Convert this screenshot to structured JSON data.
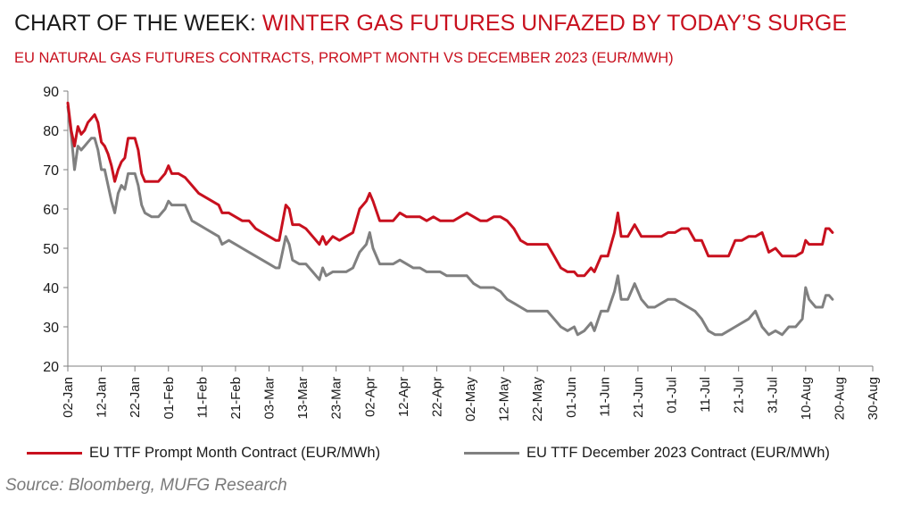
{
  "title": {
    "prefix": "CHART OF THE WEEK:",
    "highlight": "WINTER GAS FUTURES UNFAZED BY TODAY’S SURGE"
  },
  "subtitle": "EU NATURAL GAS FUTURES CONTRACTS, PROMPT MONTH VS DECEMBER 2023 (EUR/MWH)",
  "source": "Source: Bloomberg, MUFG Research",
  "colors": {
    "prompt": "#c8101e",
    "dec23": "#808080",
    "axis": "#7f7f7f",
    "title_red": "#c8101e"
  },
  "legend": [
    {
      "label": "EU TTF Prompt Month Contract (EUR/MWh)",
      "color": "#c8101e"
    },
    {
      "label": "EU TTF December 2023 Contract (EUR/MWh)",
      "color": "#808080"
    }
  ],
  "chart_data": {
    "type": "line",
    "ylim": [
      20,
      90
    ],
    "yticks": [
      20,
      30,
      40,
      50,
      60,
      70,
      80,
      90
    ],
    "xaxis_start": "02-Jan",
    "xaxis_end": "30-Aug",
    "xticks": [
      "02-Jan",
      "12-Jan",
      "22-Jan",
      "01-Feb",
      "11-Feb",
      "21-Feb",
      "03-Mar",
      "13-Mar",
      "23-Mar",
      "02-Apr",
      "12-Apr",
      "22-Apr",
      "02-May",
      "12-May",
      "22-May",
      "01-Jun",
      "11-Jun",
      "21-Jun",
      "01-Jul",
      "11-Jul",
      "21-Jul",
      "31-Jul",
      "10-Aug",
      "20-Aug",
      "30-Aug"
    ],
    "grid": false,
    "legend_position": "bottom",
    "series": [
      {
        "name": "EU TTF Prompt Month Contract (EUR/MWh)",
        "points": [
          [
            "02-Jan",
            87
          ],
          [
            "03-Jan",
            80
          ],
          [
            "04-Jan",
            76
          ],
          [
            "05-Jan",
            81
          ],
          [
            "06-Jan",
            79
          ],
          [
            "07-Jan",
            80
          ],
          [
            "08-Jan",
            82
          ],
          [
            "09-Jan",
            83
          ],
          [
            "10-Jan",
            84
          ],
          [
            "11-Jan",
            82
          ],
          [
            "12-Jan",
            77
          ],
          [
            "13-Jan",
            76
          ],
          [
            "14-Jan",
            74
          ],
          [
            "15-Jan",
            71
          ],
          [
            "16-Jan",
            67
          ],
          [
            "17-Jan",
            70
          ],
          [
            "18-Jan",
            72
          ],
          [
            "19-Jan",
            73
          ],
          [
            "20-Jan",
            78
          ],
          [
            "21-Jan",
            78
          ],
          [
            "22-Jan",
            78
          ],
          [
            "23-Jan",
            75
          ],
          [
            "24-Jan",
            69
          ],
          [
            "25-Jan",
            67
          ],
          [
            "27-Jan",
            67
          ],
          [
            "29-Jan",
            67
          ],
          [
            "30-Jan",
            68
          ],
          [
            "31-Jan",
            69
          ],
          [
            "01-Feb",
            71
          ],
          [
            "02-Feb",
            69
          ],
          [
            "04-Feb",
            69
          ],
          [
            "06-Feb",
            68
          ],
          [
            "08-Feb",
            66
          ],
          [
            "10-Feb",
            64
          ],
          [
            "12-Feb",
            63
          ],
          [
            "14-Feb",
            62
          ],
          [
            "16-Feb",
            61
          ],
          [
            "17-Feb",
            59
          ],
          [
            "19-Feb",
            59
          ],
          [
            "21-Feb",
            58
          ],
          [
            "23-Feb",
            57
          ],
          [
            "25-Feb",
            57
          ],
          [
            "27-Feb",
            55
          ],
          [
            "01-Mar",
            54
          ],
          [
            "03-Mar",
            53
          ],
          [
            "05-Mar",
            52
          ],
          [
            "06-Mar",
            52
          ],
          [
            "08-Mar",
            61
          ],
          [
            "09-Mar",
            60
          ],
          [
            "10-Mar",
            56
          ],
          [
            "12-Mar",
            56
          ],
          [
            "14-Mar",
            55
          ],
          [
            "16-Mar",
            53
          ],
          [
            "18-Mar",
            51
          ],
          [
            "19-Mar",
            53
          ],
          [
            "20-Mar",
            51
          ],
          [
            "22-Mar",
            53
          ],
          [
            "24-Mar",
            52
          ],
          [
            "26-Mar",
            53
          ],
          [
            "28-Mar",
            54
          ],
          [
            "30-Mar",
            60
          ],
          [
            "01-Apr",
            62
          ],
          [
            "02-Apr",
            64
          ],
          [
            "03-Apr",
            62
          ],
          [
            "05-Apr",
            57
          ],
          [
            "07-Apr",
            57
          ],
          [
            "09-Apr",
            57
          ],
          [
            "11-Apr",
            59
          ],
          [
            "13-Apr",
            58
          ],
          [
            "15-Apr",
            58
          ],
          [
            "17-Apr",
            58
          ],
          [
            "19-Apr",
            57
          ],
          [
            "21-Apr",
            58
          ],
          [
            "23-Apr",
            57
          ],
          [
            "25-Apr",
            57
          ],
          [
            "27-Apr",
            57
          ],
          [
            "29-Apr",
            58
          ],
          [
            "01-May",
            59
          ],
          [
            "03-May",
            58
          ],
          [
            "05-May",
            57
          ],
          [
            "07-May",
            57
          ],
          [
            "09-May",
            58
          ],
          [
            "11-May",
            58
          ],
          [
            "13-May",
            57
          ],
          [
            "15-May",
            55
          ],
          [
            "17-May",
            52
          ],
          [
            "19-May",
            51
          ],
          [
            "21-May",
            51
          ],
          [
            "23-May",
            51
          ],
          [
            "25-May",
            51
          ],
          [
            "27-May",
            48
          ],
          [
            "29-May",
            45
          ],
          [
            "31-May",
            44
          ],
          [
            "02-Jun",
            44
          ],
          [
            "03-Jun",
            43
          ],
          [
            "05-Jun",
            43
          ],
          [
            "07-Jun",
            45
          ],
          [
            "08-Jun",
            44
          ],
          [
            "10-Jun",
            48
          ],
          [
            "12-Jun",
            48
          ],
          [
            "14-Jun",
            54
          ],
          [
            "15-Jun",
            59
          ],
          [
            "16-Jun",
            53
          ],
          [
            "18-Jun",
            53
          ],
          [
            "20-Jun",
            56
          ],
          [
            "22-Jun",
            53
          ],
          [
            "24-Jun",
            53
          ],
          [
            "26-Jun",
            53
          ],
          [
            "28-Jun",
            53
          ],
          [
            "30-Jun",
            54
          ],
          [
            "02-Jul",
            54
          ],
          [
            "04-Jul",
            55
          ],
          [
            "06-Jul",
            55
          ],
          [
            "08-Jul",
            52
          ],
          [
            "10-Jul",
            52
          ],
          [
            "12-Jul",
            48
          ],
          [
            "14-Jul",
            48
          ],
          [
            "16-Jul",
            48
          ],
          [
            "18-Jul",
            48
          ],
          [
            "20-Jul",
            52
          ],
          [
            "22-Jul",
            52
          ],
          [
            "24-Jul",
            53
          ],
          [
            "26-Jul",
            53
          ],
          [
            "28-Jul",
            54
          ],
          [
            "30-Jul",
            49
          ],
          [
            "01-Aug",
            50
          ],
          [
            "03-Aug",
            48
          ],
          [
            "05-Aug",
            48
          ],
          [
            "07-Aug",
            48
          ],
          [
            "09-Aug",
            49
          ],
          [
            "10-Aug",
            52
          ],
          [
            "11-Aug",
            51
          ],
          [
            "13-Aug",
            51
          ],
          [
            "15-Aug",
            51
          ],
          [
            "16-Aug",
            55
          ],
          [
            "17-Aug",
            55
          ],
          [
            "18-Aug",
            54
          ]
        ]
      },
      {
        "name": "EU TTF December 2023 Contract (EUR/MWh)",
        "points": [
          [
            "02-Jan",
            86
          ],
          [
            "03-Jan",
            79
          ],
          [
            "04-Jan",
            70
          ],
          [
            "05-Jan",
            76
          ],
          [
            "06-Jan",
            75
          ],
          [
            "07-Jan",
            76
          ],
          [
            "08-Jan",
            77
          ],
          [
            "09-Jan",
            78
          ],
          [
            "10-Jan",
            78
          ],
          [
            "11-Jan",
            75
          ],
          [
            "12-Jan",
            70
          ],
          [
            "13-Jan",
            70
          ],
          [
            "14-Jan",
            66
          ],
          [
            "15-Jan",
            62
          ],
          [
            "16-Jan",
            59
          ],
          [
            "17-Jan",
            64
          ],
          [
            "18-Jan",
            66
          ],
          [
            "19-Jan",
            65
          ],
          [
            "20-Jan",
            69
          ],
          [
            "21-Jan",
            69
          ],
          [
            "22-Jan",
            69
          ],
          [
            "23-Jan",
            66
          ],
          [
            "24-Jan",
            61
          ],
          [
            "25-Jan",
            59
          ],
          [
            "27-Jan",
            58
          ],
          [
            "29-Jan",
            58
          ],
          [
            "30-Jan",
            59
          ],
          [
            "31-Jan",
            60
          ],
          [
            "01-Feb",
            62
          ],
          [
            "02-Feb",
            61
          ],
          [
            "04-Feb",
            61
          ],
          [
            "06-Feb",
            61
          ],
          [
            "08-Feb",
            57
          ],
          [
            "10-Feb",
            56
          ],
          [
            "12-Feb",
            55
          ],
          [
            "14-Feb",
            54
          ],
          [
            "16-Feb",
            53
          ],
          [
            "17-Feb",
            51
          ],
          [
            "19-Feb",
            52
          ],
          [
            "21-Feb",
            51
          ],
          [
            "23-Feb",
            50
          ],
          [
            "25-Feb",
            49
          ],
          [
            "27-Feb",
            48
          ],
          [
            "01-Mar",
            47
          ],
          [
            "03-Mar",
            46
          ],
          [
            "05-Mar",
            45
          ],
          [
            "06-Mar",
            45
          ],
          [
            "08-Mar",
            53
          ],
          [
            "09-Mar",
            51
          ],
          [
            "10-Mar",
            47
          ],
          [
            "12-Mar",
            46
          ],
          [
            "14-Mar",
            46
          ],
          [
            "16-Mar",
            44
          ],
          [
            "18-Mar",
            42
          ],
          [
            "19-Mar",
            45
          ],
          [
            "20-Mar",
            43
          ],
          [
            "22-Mar",
            44
          ],
          [
            "24-Mar",
            44
          ],
          [
            "26-Mar",
            44
          ],
          [
            "28-Mar",
            45
          ],
          [
            "30-Mar",
            49
          ],
          [
            "01-Apr",
            51
          ],
          [
            "02-Apr",
            54
          ],
          [
            "03-Apr",
            50
          ],
          [
            "05-Apr",
            46
          ],
          [
            "07-Apr",
            46
          ],
          [
            "09-Apr",
            46
          ],
          [
            "11-Apr",
            47
          ],
          [
            "13-Apr",
            46
          ],
          [
            "15-Apr",
            45
          ],
          [
            "17-Apr",
            45
          ],
          [
            "19-Apr",
            44
          ],
          [
            "21-Apr",
            44
          ],
          [
            "23-Apr",
            44
          ],
          [
            "25-Apr",
            43
          ],
          [
            "27-Apr",
            43
          ],
          [
            "29-Apr",
            43
          ],
          [
            "01-May",
            43
          ],
          [
            "03-May",
            41
          ],
          [
            "05-May",
            40
          ],
          [
            "07-May",
            40
          ],
          [
            "09-May",
            40
          ],
          [
            "11-May",
            39
          ],
          [
            "13-May",
            37
          ],
          [
            "15-May",
            36
          ],
          [
            "17-May",
            35
          ],
          [
            "19-May",
            34
          ],
          [
            "21-May",
            34
          ],
          [
            "23-May",
            34
          ],
          [
            "25-May",
            34
          ],
          [
            "27-May",
            32
          ],
          [
            "29-May",
            30
          ],
          [
            "31-May",
            29
          ],
          [
            "02-Jun",
            30
          ],
          [
            "03-Jun",
            28
          ],
          [
            "05-Jun",
            29
          ],
          [
            "07-Jun",
            31
          ],
          [
            "08-Jun",
            29
          ],
          [
            "10-Jun",
            34
          ],
          [
            "12-Jun",
            34
          ],
          [
            "14-Jun",
            39
          ],
          [
            "15-Jun",
            43
          ],
          [
            "16-Jun",
            37
          ],
          [
            "18-Jun",
            37
          ],
          [
            "20-Jun",
            41
          ],
          [
            "22-Jun",
            37
          ],
          [
            "24-Jun",
            35
          ],
          [
            "26-Jun",
            35
          ],
          [
            "28-Jun",
            36
          ],
          [
            "30-Jun",
            37
          ],
          [
            "02-Jul",
            37
          ],
          [
            "04-Jul",
            36
          ],
          [
            "06-Jul",
            35
          ],
          [
            "08-Jul",
            34
          ],
          [
            "10-Jul",
            32
          ],
          [
            "12-Jul",
            29
          ],
          [
            "14-Jul",
            28
          ],
          [
            "16-Jul",
            28
          ],
          [
            "18-Jul",
            29
          ],
          [
            "20-Jul",
            30
          ],
          [
            "22-Jul",
            31
          ],
          [
            "24-Jul",
            32
          ],
          [
            "26-Jul",
            34
          ],
          [
            "28-Jul",
            30
          ],
          [
            "30-Jul",
            28
          ],
          [
            "01-Aug",
            29
          ],
          [
            "03-Aug",
            28
          ],
          [
            "05-Aug",
            30
          ],
          [
            "07-Aug",
            30
          ],
          [
            "09-Aug",
            32
          ],
          [
            "10-Aug",
            40
          ],
          [
            "11-Aug",
            37
          ],
          [
            "13-Aug",
            35
          ],
          [
            "15-Aug",
            35
          ],
          [
            "16-Aug",
            38
          ],
          [
            "17-Aug",
            38
          ],
          [
            "18-Aug",
            37
          ]
        ]
      }
    ]
  }
}
